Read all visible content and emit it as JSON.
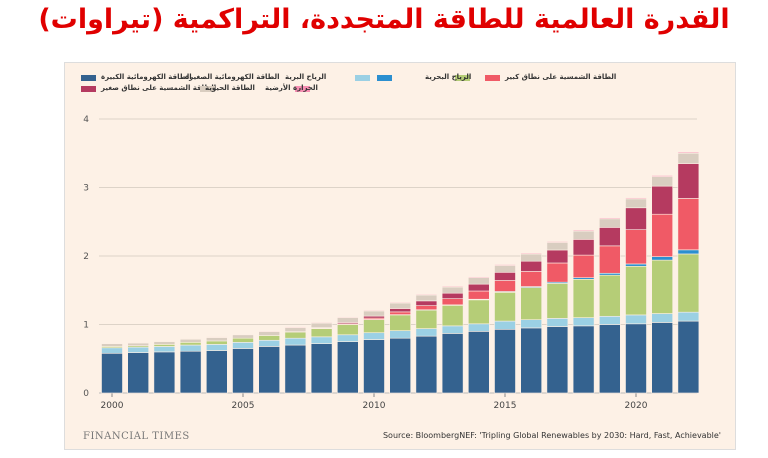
{
  "title": "القدرة العالمية للطاقة المتجددة، التراكمية (تيراوات)",
  "chart_data": {
    "type": "bar",
    "stacked": true,
    "categories": [
      2000,
      2001,
      2002,
      2003,
      2004,
      2005,
      2006,
      2007,
      2008,
      2009,
      2010,
      2011,
      2012,
      2013,
      2014,
      2015,
      2016,
      2017,
      2018,
      2019,
      2020,
      2021,
      2022
    ],
    "x_ticks": [
      "2000",
      "2005",
      "2010",
      "2015",
      "2020"
    ],
    "y_ticks": [
      "0",
      "1",
      "2",
      "3",
      "4"
    ],
    "ylim": [
      0,
      4
    ],
    "grid": "horizontal",
    "legend_position": "top",
    "series": [
      {
        "name": "الطاقة الكهرومائية الكبيرة",
        "color": "#34628f",
        "values": [
          0.58,
          0.59,
          0.6,
          0.61,
          0.62,
          0.65,
          0.68,
          0.7,
          0.72,
          0.75,
          0.78,
          0.8,
          0.83,
          0.87,
          0.9,
          0.93,
          0.95,
          0.97,
          0.98,
          1.0,
          1.01,
          1.03,
          1.05
        ]
      },
      {
        "name": "الطاقة الكهرومائية الصغيرة",
        "color": "#9bd0e4",
        "values": [
          0.08,
          0.08,
          0.08,
          0.09,
          0.09,
          0.09,
          0.09,
          0.1,
          0.1,
          0.1,
          0.1,
          0.11,
          0.11,
          0.11,
          0.11,
          0.12,
          0.12,
          0.12,
          0.12,
          0.12,
          0.13,
          0.13,
          0.13
        ]
      },
      {
        "name": "الرياح البرية",
        "color": "#b5cd77",
        "values": [
          0.02,
          0.02,
          0.03,
          0.04,
          0.05,
          0.06,
          0.07,
          0.09,
          0.12,
          0.15,
          0.19,
          0.23,
          0.27,
          0.3,
          0.35,
          0.42,
          0.47,
          0.51,
          0.56,
          0.6,
          0.71,
          0.78,
          0.85
        ]
      },
      {
        "name": "الرياح البحرية",
        "color": "#2b8fd0",
        "values": [
          0,
          0,
          0,
          0,
          0,
          0,
          0,
          0,
          0,
          0,
          0.003,
          0.004,
          0.005,
          0.007,
          0.009,
          0.012,
          0.014,
          0.018,
          0.023,
          0.028,
          0.034,
          0.05,
          0.06
        ]
      },
      {
        "name": "الطاقة الشمسية على نطاق كبير",
        "color": "#f05a66",
        "values": [
          0,
          0,
          0,
          0,
          0,
          0,
          0,
          0,
          0.005,
          0.01,
          0.02,
          0.04,
          0.06,
          0.09,
          0.12,
          0.16,
          0.22,
          0.28,
          0.33,
          0.4,
          0.5,
          0.62,
          0.75
        ]
      },
      {
        "name": "الطاقة الشمسية على نطاق صغير",
        "color": "#b53a60",
        "values": [
          0,
          0,
          0,
          0,
          0,
          0,
          0,
          0.005,
          0.01,
          0.02,
          0.03,
          0.05,
          0.07,
          0.08,
          0.1,
          0.12,
          0.15,
          0.19,
          0.23,
          0.27,
          0.32,
          0.41,
          0.51
        ]
      },
      {
        "name": "الطاقة الحيوية",
        "color": "#d9cdc0",
        "values": [
          0.04,
          0.04,
          0.04,
          0.045,
          0.05,
          0.05,
          0.055,
          0.06,
          0.065,
          0.07,
          0.075,
          0.08,
          0.085,
          0.09,
          0.095,
          0.1,
          0.105,
          0.11,
          0.12,
          0.125,
          0.13,
          0.14,
          0.15
        ]
      },
      {
        "name": "الحرارة الأرضية",
        "color": "#f78fb3",
        "values": [
          0.008,
          0.008,
          0.008,
          0.009,
          0.009,
          0.009,
          0.01,
          0.01,
          0.01,
          0.01,
          0.011,
          0.011,
          0.011,
          0.012,
          0.012,
          0.013,
          0.013,
          0.013,
          0.014,
          0.014,
          0.014,
          0.015,
          0.015
        ]
      }
    ]
  },
  "footer": {
    "brand": "FINANCIAL TIMES",
    "source": "Source: BloombergNEF: 'Tripling Global Renewables by 2030: Hard, Fast, Achievable'"
  }
}
